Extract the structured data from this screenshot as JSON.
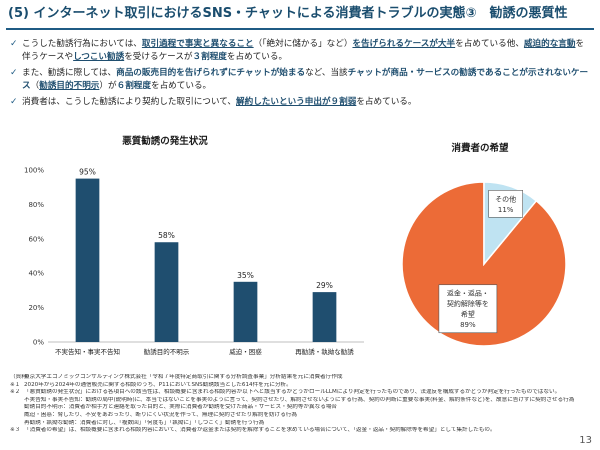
{
  "header": {
    "title": "(5) インターネット取引におけるSNS・チャットによる消費者トラブルの実態③　勧誘の悪質性"
  },
  "bullets": [
    {
      "segments": [
        {
          "t": "こうした勧誘行為においては、",
          "s": ""
        },
        {
          "t": "取引過程で事実と異なること",
          "s": "em-u"
        },
        {
          "t": "（「絶対に儲かる」など）",
          "s": ""
        },
        {
          "t": "を告げられるケースが大半",
          "s": "em-u"
        },
        {
          "t": "を占めている他、",
          "s": ""
        },
        {
          "t": "威迫的な言動",
          "s": "em-u"
        },
        {
          "t": "を伴うケースや",
          "s": ""
        },
        {
          "t": "しつこい勧誘",
          "s": "em-u"
        },
        {
          "t": "を受けるケースが",
          "s": ""
        },
        {
          "t": "３割程度",
          "s": "em"
        },
        {
          "t": "を占めている。",
          "s": ""
        }
      ]
    },
    {
      "segments": [
        {
          "t": "また、勧誘に際しては、",
          "s": ""
        },
        {
          "t": "商品の販売目的を告げられずにチャットが始まる",
          "s": "em"
        },
        {
          "t": "など、当該",
          "s": ""
        },
        {
          "t": "チャットが商品・サービスの勧誘であることが示されないケース",
          "s": "em"
        },
        {
          "t": "（",
          "s": ""
        },
        {
          "t": "勧誘目的不明示",
          "s": "em-u"
        },
        {
          "t": "）が",
          "s": ""
        },
        {
          "t": "６割程度",
          "s": "em"
        },
        {
          "t": "を占めている。",
          "s": ""
        }
      ]
    },
    {
      "segments": [
        {
          "t": "消費者は、こうした勧誘により契約した取引について、",
          "s": ""
        },
        {
          "t": "解約したいという申出が９割弱",
          "s": "em-u"
        },
        {
          "t": "を占めている。",
          "s": ""
        }
      ]
    }
  ],
  "charts": {
    "bar_title": "悪質勧誘の発生状況",
    "pie_title": "消費者の希望"
  },
  "chart_data": [
    {
      "type": "bar",
      "title": "悪質勧誘の発生状況",
      "categories": [
        "不実告知・事実不告知",
        "勧誘目的不明示",
        "威迫・困惑",
        "再勧誘・執拗な勧誘"
      ],
      "values": [
        95,
        58,
        35,
        29
      ],
      "value_labels": [
        "95%",
        "58%",
        "35%",
        "29%"
      ],
      "ylim": [
        0,
        100
      ],
      "yticks": [
        0,
        20,
        40,
        60,
        80,
        100
      ],
      "ytick_labels": [
        "0%",
        "20%",
        "40%",
        "60%",
        "80%",
        "100%"
      ],
      "grid": false,
      "bar_color": "#1f4e6f"
    },
    {
      "type": "pie",
      "title": "消費者の希望",
      "slices": [
        {
          "label_lines": [
            "返金・返品・",
            "契約解除等を",
            "希望"
          ],
          "value": 89,
          "value_label": "89%",
          "color": "#ec6b37"
        },
        {
          "label_lines": [
            "その他"
          ],
          "value": 11,
          "value_label": "11%",
          "color": "#bfe3f2"
        }
      ]
    }
  ],
  "notes": [
    {
      "mark": "（資料）",
      "text": "東京大学エコノミックコンサルティング株式会社「令和７年度特定商取引に関する分析調査事業」分析結果を元に消費者庁作成"
    },
    {
      "mark": "※１",
      "text": "2020年から2024年の通信販売に関する相談のうち、P11においてSNS勧誘該当とした614件を元に分析。"
    },
    {
      "mark": "※２",
      "text": "「悪質勧誘の発生状況」における各項目への該当性は、相談概要に含まれる相談内容が以下へと該当するかどうかロールLLMにより判定を行ったものであり、法違反を構成するかどうか判定を行ったものではない。"
    },
    {
      "mark": "",
      "text": "不実告知・事実不告知：勧誘の局中(説明時)に、本当ではないことを事実のように言って、契約させたり、解約させないようにする行為、契約の判断に重要な事実(料金、解約条件など)を、故意に告げずに契約させる行為"
    },
    {
      "mark": "",
      "text": "勧誘目的不明示：消費者が相手方と連絡を取った目的と、実際に消費者が勧誘を受けた商品・サービス・契約等が異なる場合"
    },
    {
      "mark": "",
      "text": "威迫・困惑：脅したり、不安をあおったり、断りにくい状況を作って、無理に契約させたり解約を妨げる行為"
    },
    {
      "mark": "",
      "text": "再勧誘・執拗な勧誘：消費者に対し、「複数回」「何度も」「執拗に」「しつこく」勧誘を行う行為"
    },
    {
      "mark": "※３",
      "text": "「消費者の希望」は、相談概要に含まれる相談内容において、消費者が返金または契約を解除することを求めている場合について、「返金・返品・契約解除等を希望」として集計したもの。"
    }
  ],
  "footer": {
    "page_number": "13"
  }
}
